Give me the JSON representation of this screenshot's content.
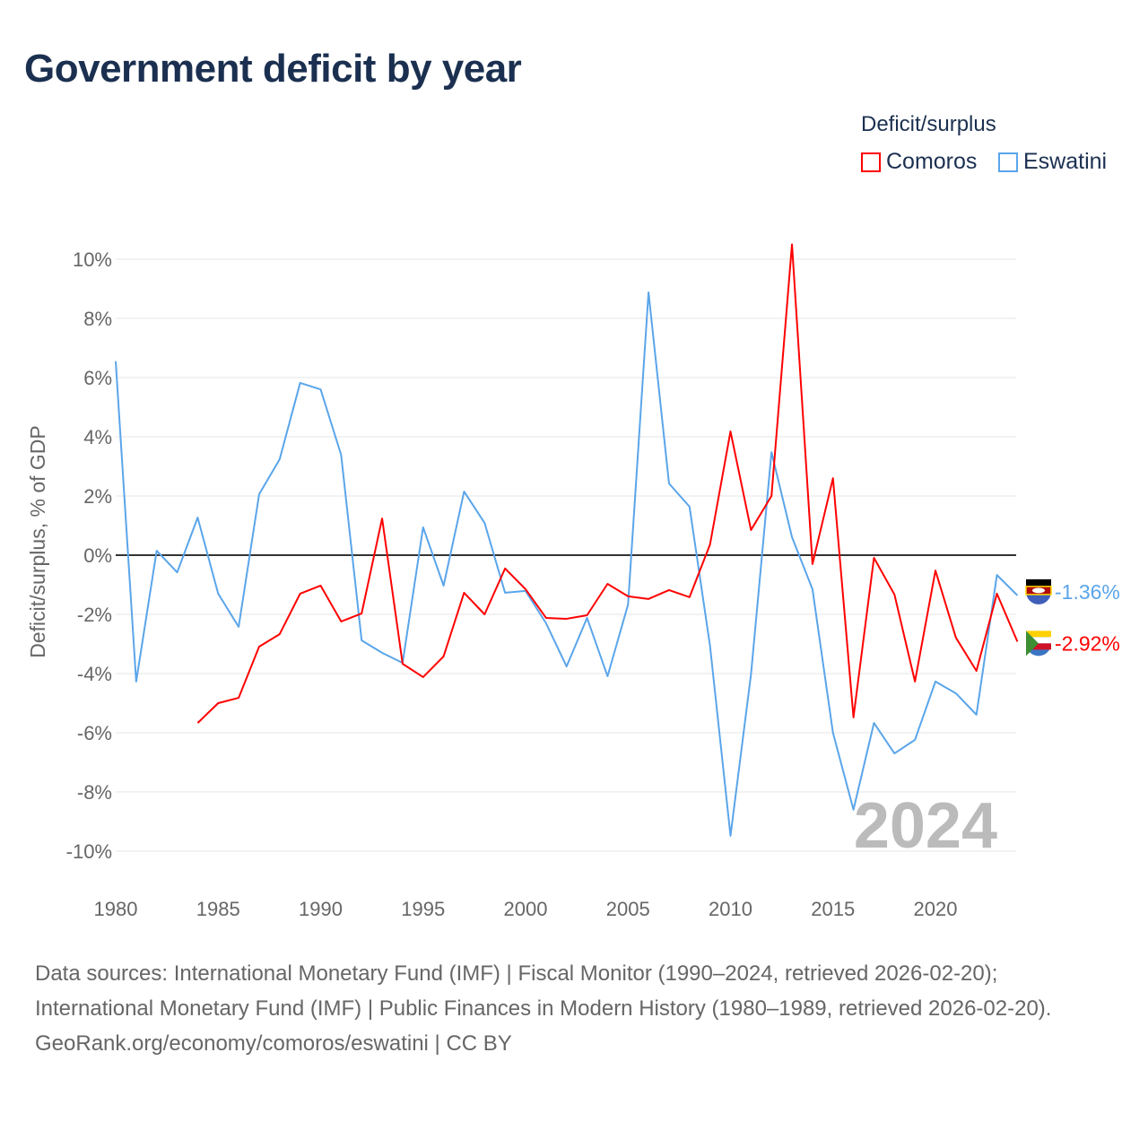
{
  "title": "Government deficit by year",
  "legend": {
    "title": "Deficit/surplus",
    "items": [
      {
        "label": "Comoros",
        "color": "#ff0000"
      },
      {
        "label": "Eswatini",
        "color": "#5aa5ea"
      }
    ]
  },
  "watermark_year": "2024",
  "footer": {
    "sources": "Data sources: International Monetary Fund (IMF) | Fiscal Monitor (1990–2024, retrieved 2026-02-20); International Monetary Fund (IMF) | Public Finances in Modern History (1980–1989, retrieved 2026-02-20).",
    "credit": "GeoRank.org/economy/comoros/eswatini | CC BY"
  },
  "chart_data": {
    "type": "line",
    "title": "Government deficit by year",
    "xlabel": "",
    "ylabel": "Deficit/surplus, % of GDP",
    "xlim": [
      1980,
      2024
    ],
    "ylim": [
      -11,
      11
    ],
    "xticks": [
      1980,
      1985,
      1990,
      1995,
      2000,
      2005,
      2010,
      2015,
      2020
    ],
    "yticks": [
      {
        "v": 10,
        "l": "10%"
      },
      {
        "v": 8,
        "l": "8%"
      },
      {
        "v": 6,
        "l": "6%"
      },
      {
        "v": 4,
        "l": "4%"
      },
      {
        "v": 2,
        "l": "2%"
      },
      {
        "v": 0,
        "l": "0%"
      },
      {
        "v": -2,
        "l": "-2%"
      },
      {
        "v": -4,
        "l": "-4%"
      },
      {
        "v": -6,
        "l": "-6%"
      },
      {
        "v": -8,
        "l": "-8%"
      },
      {
        "v": -10,
        "l": "-10%"
      }
    ],
    "series": [
      {
        "name": "Eswatini",
        "color": "#5aa5ea",
        "start": 1980,
        "end_label": "-1.36%",
        "values": [
          6.55,
          -4.27,
          0.15,
          -0.58,
          1.27,
          -1.3,
          -2.42,
          2.06,
          3.24,
          5.82,
          5.6,
          3.39,
          -2.88,
          -3.3,
          -3.64,
          0.94,
          -1.03,
          2.15,
          1.09,
          -1.27,
          -1.21,
          -2.3,
          -3.76,
          -2.12,
          -4.09,
          -1.67,
          8.88,
          2.42,
          1.64,
          -3.06,
          -9.48,
          -4.03,
          3.48,
          0.61,
          -1.15,
          -6.0,
          -8.6,
          -5.67,
          -6.7,
          -6.24,
          -4.27,
          -4.67,
          -5.39,
          -0.67,
          -1.36
        ]
      },
      {
        "name": "Comoros",
        "color": "#ff0000",
        "start": 1984,
        "end_label": "-2.92%",
        "values": [
          -5.67,
          -5.0,
          -4.82,
          -3.09,
          -2.67,
          -1.3,
          -1.03,
          -2.24,
          -1.97,
          1.24,
          -3.67,
          -4.12,
          -3.42,
          -1.27,
          -2.0,
          -0.45,
          -1.15,
          -2.12,
          -2.15,
          -2.03,
          -0.97,
          -1.39,
          -1.48,
          -1.18,
          -1.42,
          0.36,
          4.18,
          0.85,
          2.0,
          10.5,
          -0.3,
          2.6,
          -5.48,
          -0.09,
          -1.33,
          -4.27,
          -0.52,
          -2.79,
          -3.91,
          -1.3,
          -2.92
        ]
      }
    ]
  }
}
